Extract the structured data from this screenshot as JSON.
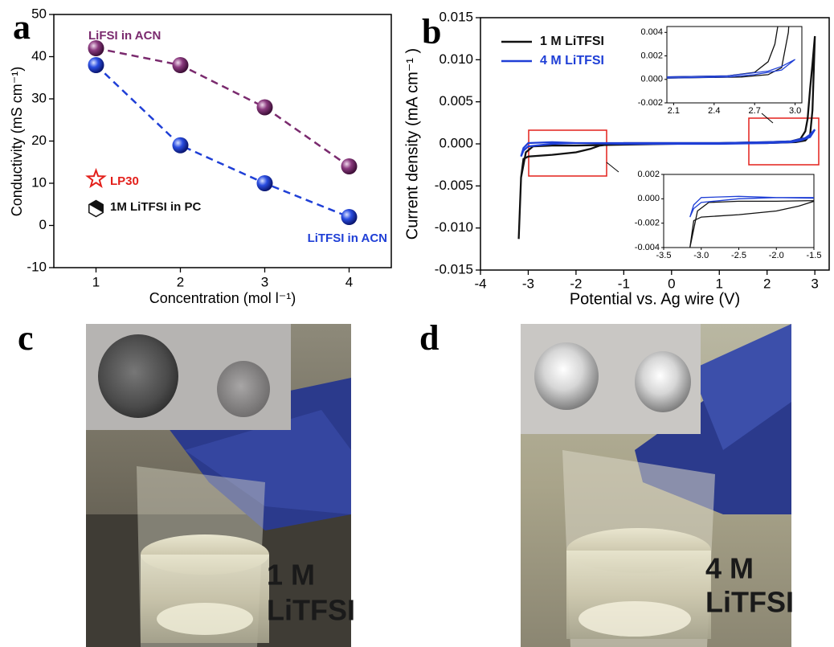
{
  "chart_data": [
    {
      "type": "scatter",
      "panel_label": "a",
      "x_label": "Concentration (mol l⁻¹)",
      "y_label": "Conductivity (mS cm⁻¹)",
      "x": [
        1,
        2,
        3,
        4
      ],
      "xlim": [
        0.5,
        4.5
      ],
      "xticks": [
        1,
        2,
        3,
        4
      ],
      "ylim": [
        -10,
        50
      ],
      "yticks": [
        -10,
        0,
        10,
        20,
        30,
        40,
        50
      ],
      "series": [
        {
          "name": "LiFSI in ACN",
          "color": "#7a2a6e",
          "marker": "sphere",
          "line": "dashed",
          "values": [
            42,
            38,
            28,
            14
          ]
        },
        {
          "name": "LiTFSI in ACN",
          "color": "#1f3fd6",
          "marker": "sphere",
          "line": "dashed",
          "values": [
            38,
            19,
            10,
            2
          ]
        },
        {
          "name": "LP30",
          "color": "#e3201b",
          "marker": "star",
          "values": [
            11,
            null,
            null,
            null
          ]
        },
        {
          "name": "1M LiTFSI in PC",
          "color": "#111111",
          "marker": "hexagon",
          "values": [
            4,
            null,
            null,
            null
          ]
        }
      ]
    },
    {
      "type": "line",
      "panel_label": "b",
      "x_label": "Potential vs. Ag wire (V)",
      "y_label": "Current density (mA cm⁻¹ )",
      "xlim": [
        -4,
        3.3
      ],
      "xticks": [
        -4,
        -3,
        -2,
        -1,
        0,
        1,
        2,
        3
      ],
      "ylim": [
        -0.015,
        0.015
      ],
      "yticks": [
        {
          "value": -0.015,
          "label": "-0.015"
        },
        {
          "value": -0.01,
          "label": "-0.010"
        },
        {
          "value": -0.005,
          "label": "-0.005"
        },
        {
          "value": 0,
          "label": "0.000"
        },
        {
          "value": 0.005,
          "label": "0.005"
        },
        {
          "value": 0.01,
          "label": "0.010"
        },
        {
          "value": 0.015,
          "label": "0.015"
        }
      ],
      "legend": "top-left",
      "series": [
        {
          "name": "1 M LiTFSI",
          "color": "#111111",
          "x": [
            -3.2,
            -3.15,
            -3.1,
            -3.0,
            -2.5,
            -2.0,
            -1.7,
            -1.5,
            -1.0,
            0,
            1,
            2,
            2.5,
            2.7,
            2.8,
            2.85,
            2.9,
            2.95,
            3.0,
            2.95,
            2.9,
            2.8,
            2.6,
            2.0,
            1,
            0,
            -1,
            -2,
            -2.5,
            -2.9,
            -3.05,
            -3.15,
            -3.2
          ],
          "values": [
            -0.0113,
            -0.004,
            -0.0018,
            -0.0015,
            -0.0013,
            -0.001,
            -0.0006,
            -0.0002,
            0.0001,
            0.0001,
            0.0001,
            0.0002,
            0.0003,
            0.0006,
            0.0015,
            0.003,
            0.0065,
            0.0095,
            0.0128,
            0.004,
            0.001,
            0.0004,
            0.0002,
            0.0001,
            0.0001,
            0,
            -0.0001,
            -0.0002,
            -0.0002,
            -0.0003,
            -0.001,
            -0.004,
            -0.0113
          ]
        },
        {
          "name": "4 M LiTFSI",
          "color": "#1f3fd6",
          "x": [
            -3.15,
            -3.1,
            -3.0,
            -2.5,
            -2.0,
            -1.5,
            0,
            1,
            2,
            2.5,
            2.8,
            2.9,
            3.0,
            2.9,
            2.7,
            2.5,
            2,
            1,
            0,
            -1,
            -2,
            -2.5,
            -3.0,
            -3.1,
            -3.15
          ],
          "values": [
            -0.0015,
            -0.0008,
            -0.0003,
            0,
            0.0001,
            0.0001,
            0.0001,
            0.0001,
            0.0002,
            0.0003,
            0.0007,
            0.0011,
            0.0017,
            0.0008,
            0.0004,
            0.0002,
            0.0001,
            0,
            0,
            0,
            0.0001,
            0.0002,
            0.0001,
            -0.0005,
            -0.0015
          ]
        }
      ],
      "insets": [
        {
          "xlim": [
            2.05,
            3.05
          ],
          "xticks": [
            2.1,
            2.4,
            2.7,
            {
              "value": 3,
              "label": "3.0"
            }
          ],
          "ylim": [
            -0.002,
            0.0045
          ],
          "yticks": [
            {
              "value": -0.002,
              "label": "-0.002"
            },
            {
              "value": 0,
              "label": "0.000"
            },
            {
              "value": 0.002,
              "label": "0.002"
            },
            {
              "value": 0.004,
              "label": "0.004"
            }
          ]
        },
        {
          "xlim": [
            -3.5,
            -1.5
          ],
          "xticks": [
            -3.5,
            {
              "value": -3,
              "label": "-3.0"
            },
            -2.5,
            {
              "value": -2,
              "label": "-2.0"
            },
            -1.5
          ],
          "ylim": [
            -0.004,
            0.002
          ],
          "yticks": [
            {
              "value": -0.004,
              "label": "-0.004"
            },
            {
              "value": -0.002,
              "label": "-0.002"
            },
            {
              "value": 0,
              "label": "0.000"
            },
            {
              "value": 0.002,
              "label": "0.002"
            }
          ]
        }
      ]
    }
  ],
  "photos": [
    {
      "panel_label": "c",
      "label_lines": [
        "1 M",
        "LiTFSI"
      ]
    },
    {
      "panel_label": "d",
      "label_lines": [
        "4 M",
        "LiTFSI"
      ]
    }
  ]
}
